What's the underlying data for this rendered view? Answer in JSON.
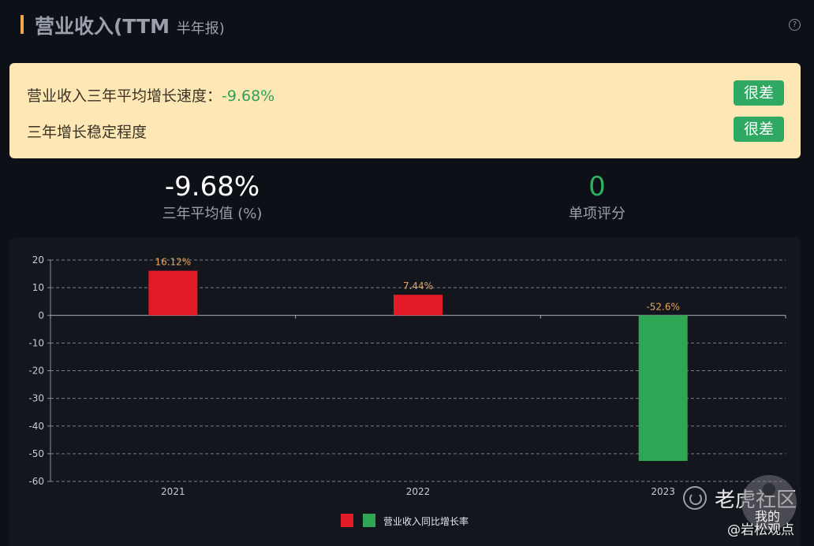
{
  "header": {
    "title": "营业收入(TTM",
    "sub": "半年报",
    "close": ")",
    "help_icon": "?"
  },
  "summary": {
    "row1_label": "营业收入三年平均增长速度：",
    "row1_value": "-9.68%",
    "row1_badge": "很差",
    "row2_label": "三年增长稳定程度",
    "row2_badge": "很差"
  },
  "metrics": {
    "avg_value": "-9.68%",
    "avg_label": "三年平均值 (%)",
    "score_value": "0",
    "score_label": "单项评分"
  },
  "legend": {
    "label": "营业收入同比增长率",
    "colors": [
      "#e21b27",
      "#2ea654"
    ]
  },
  "watermark": {
    "brand": "老虎社区",
    "avatar_label": "我的",
    "author": "@岩松观点"
  },
  "chart_data": {
    "type": "bar",
    "categories": [
      "2021",
      "2022",
      "2023"
    ],
    "values": [
      16.12,
      7.44,
      -52.6
    ],
    "data_labels": [
      "16.12%",
      "7.44%",
      "-52.6%"
    ],
    "ylim": [
      -60,
      20
    ],
    "yticks": [
      20,
      10,
      0,
      -10,
      -20,
      -30,
      -40,
      -50,
      -60
    ],
    "grid": true,
    "positive_color": "#e21b27",
    "negative_color": "#2ea654",
    "label_color": "#e9a45a",
    "title": "",
    "xlabel": "",
    "ylabel": ""
  }
}
